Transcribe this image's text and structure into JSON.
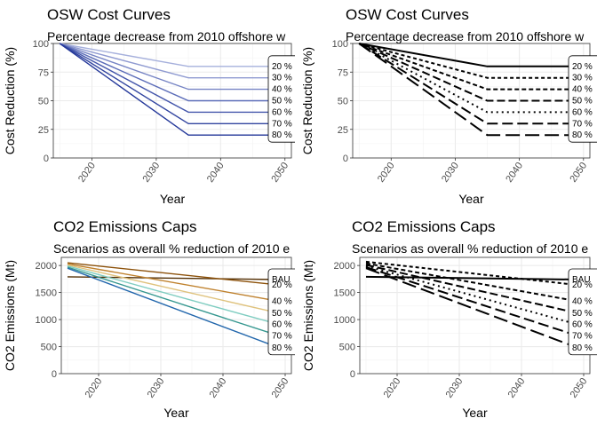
{
  "chart_data": [
    {
      "type": "line",
      "title": "OSW Cost Curves",
      "subtitle": "Percentage decrease from 2010 offshore w",
      "xlabel": "Year",
      "ylabel": "Cost Reduction (%)",
      "xlim": [
        2014,
        2051
      ],
      "ylim": [
        0,
        100
      ],
      "xticks": [
        2020,
        2030,
        2040,
        2050
      ],
      "yticks": [
        0,
        25,
        50,
        75,
        100
      ],
      "x": [
        2015,
        2035,
        2049
      ],
      "grid": true,
      "colors": [
        "#a6b0dc",
        "#8f9ad1",
        "#7583c4",
        "#5b6cb8",
        "#4456ab",
        "#3245a0",
        "#24389a"
      ],
      "series": [
        {
          "name": "20 %",
          "values": [
            100,
            80,
            80
          ]
        },
        {
          "name": "30 %",
          "values": [
            100,
            70,
            70
          ]
        },
        {
          "name": "40 %",
          "values": [
            100,
            60,
            60
          ]
        },
        {
          "name": "50 %",
          "values": [
            100,
            50,
            50
          ]
        },
        {
          "name": "60 %",
          "values": [
            100,
            40,
            40
          ]
        },
        {
          "name": "70 %",
          "values": [
            100,
            30,
            30
          ]
        },
        {
          "name": "80 %",
          "values": [
            100,
            20,
            20
          ]
        }
      ]
    },
    {
      "type": "line",
      "title": "OSW Cost Curves",
      "subtitle": "Percentage decrease from 2010 offshore w",
      "xlabel": "Year",
      "ylabel": "Cost Reduction (%)",
      "xlim": [
        2014,
        2051
      ],
      "ylim": [
        0,
        100
      ],
      "xticks": [
        2020,
        2030,
        2040,
        2050
      ],
      "yticks": [
        0,
        25,
        50,
        75,
        100
      ],
      "x": [
        2015,
        2035,
        2049
      ],
      "grid": true,
      "colors": [
        "#000000"
      ],
      "series": [
        {
          "name": "20 %",
          "values": [
            100,
            80,
            80
          ]
        },
        {
          "name": "30 %",
          "values": [
            100,
            70,
            70
          ]
        },
        {
          "name": "40 %",
          "values": [
            100,
            60,
            60
          ]
        },
        {
          "name": "50 %",
          "values": [
            100,
            50,
            50
          ]
        },
        {
          "name": "60 %",
          "values": [
            100,
            40,
            40
          ]
        },
        {
          "name": "70 %",
          "values": [
            100,
            30,
            30
          ]
        },
        {
          "name": "80 %",
          "values": [
            100,
            20,
            20
          ]
        }
      ]
    },
    {
      "type": "line",
      "title": "CO2 Emissions Caps",
      "subtitle": "Scenarios as overall % reduction of 2010 e",
      "xlabel": "Year",
      "ylabel": "CO2 Emissions (Mt)",
      "xlim": [
        2014,
        2051
      ],
      "ylim": [
        0,
        2150
      ],
      "xticks": [
        2020,
        2030,
        2040,
        2050
      ],
      "yticks": [
        0,
        500,
        1000,
        1500,
        2000
      ],
      "x": [
        2015,
        2049
      ],
      "grid": true,
      "colors": [
        "#543005",
        "#8c510a",
        "#bf812d",
        "#dfc27d",
        "#80cdc1",
        "#35978f",
        "#2166ac",
        "#053061"
      ],
      "series": [
        {
          "name": "BAU",
          "values": [
            1790,
            1740
          ]
        },
        {
          "name": "20 %",
          "values": [
            2050,
            1640
          ]
        },
        {
          "name": "40 %",
          "values": [
            2030,
            1340
          ]
        },
        {
          "name": "50 %",
          "values": [
            2010,
            1120
          ]
        },
        {
          "name": "60 %",
          "values": [
            1990,
            910
          ]
        },
        {
          "name": "70 %",
          "values": [
            1970,
            700
          ]
        },
        {
          "name": "80 %",
          "values": [
            1950,
            480
          ]
        }
      ]
    },
    {
      "type": "line",
      "title": "CO2 Emissions Caps",
      "subtitle": "Scenarios as overall % reduction of 2010 e",
      "xlabel": "Year",
      "ylabel": "CO2 Emissions (Mt)",
      "xlim": [
        2014,
        2051
      ],
      "ylim": [
        0,
        2150
      ],
      "xticks": [
        2020,
        2030,
        2040,
        2050
      ],
      "yticks": [
        0,
        500,
        1000,
        1500,
        2000
      ],
      "x": [
        2015,
        2049
      ],
      "grid": true,
      "colors": [
        "#000000"
      ],
      "series": [
        {
          "name": "BAU",
          "values": [
            1790,
            1740
          ]
        },
        {
          "name": "20 %",
          "values": [
            2070,
            1640
          ]
        },
        {
          "name": "40 %",
          "values": [
            2040,
            1340
          ]
        },
        {
          "name": "50 %",
          "values": [
            2010,
            1120
          ]
        },
        {
          "name": "60 %",
          "values": [
            1990,
            910
          ]
        },
        {
          "name": "70 %",
          "values": [
            1970,
            700
          ]
        },
        {
          "name": "80 %",
          "values": [
            1950,
            480
          ]
        }
      ]
    }
  ]
}
